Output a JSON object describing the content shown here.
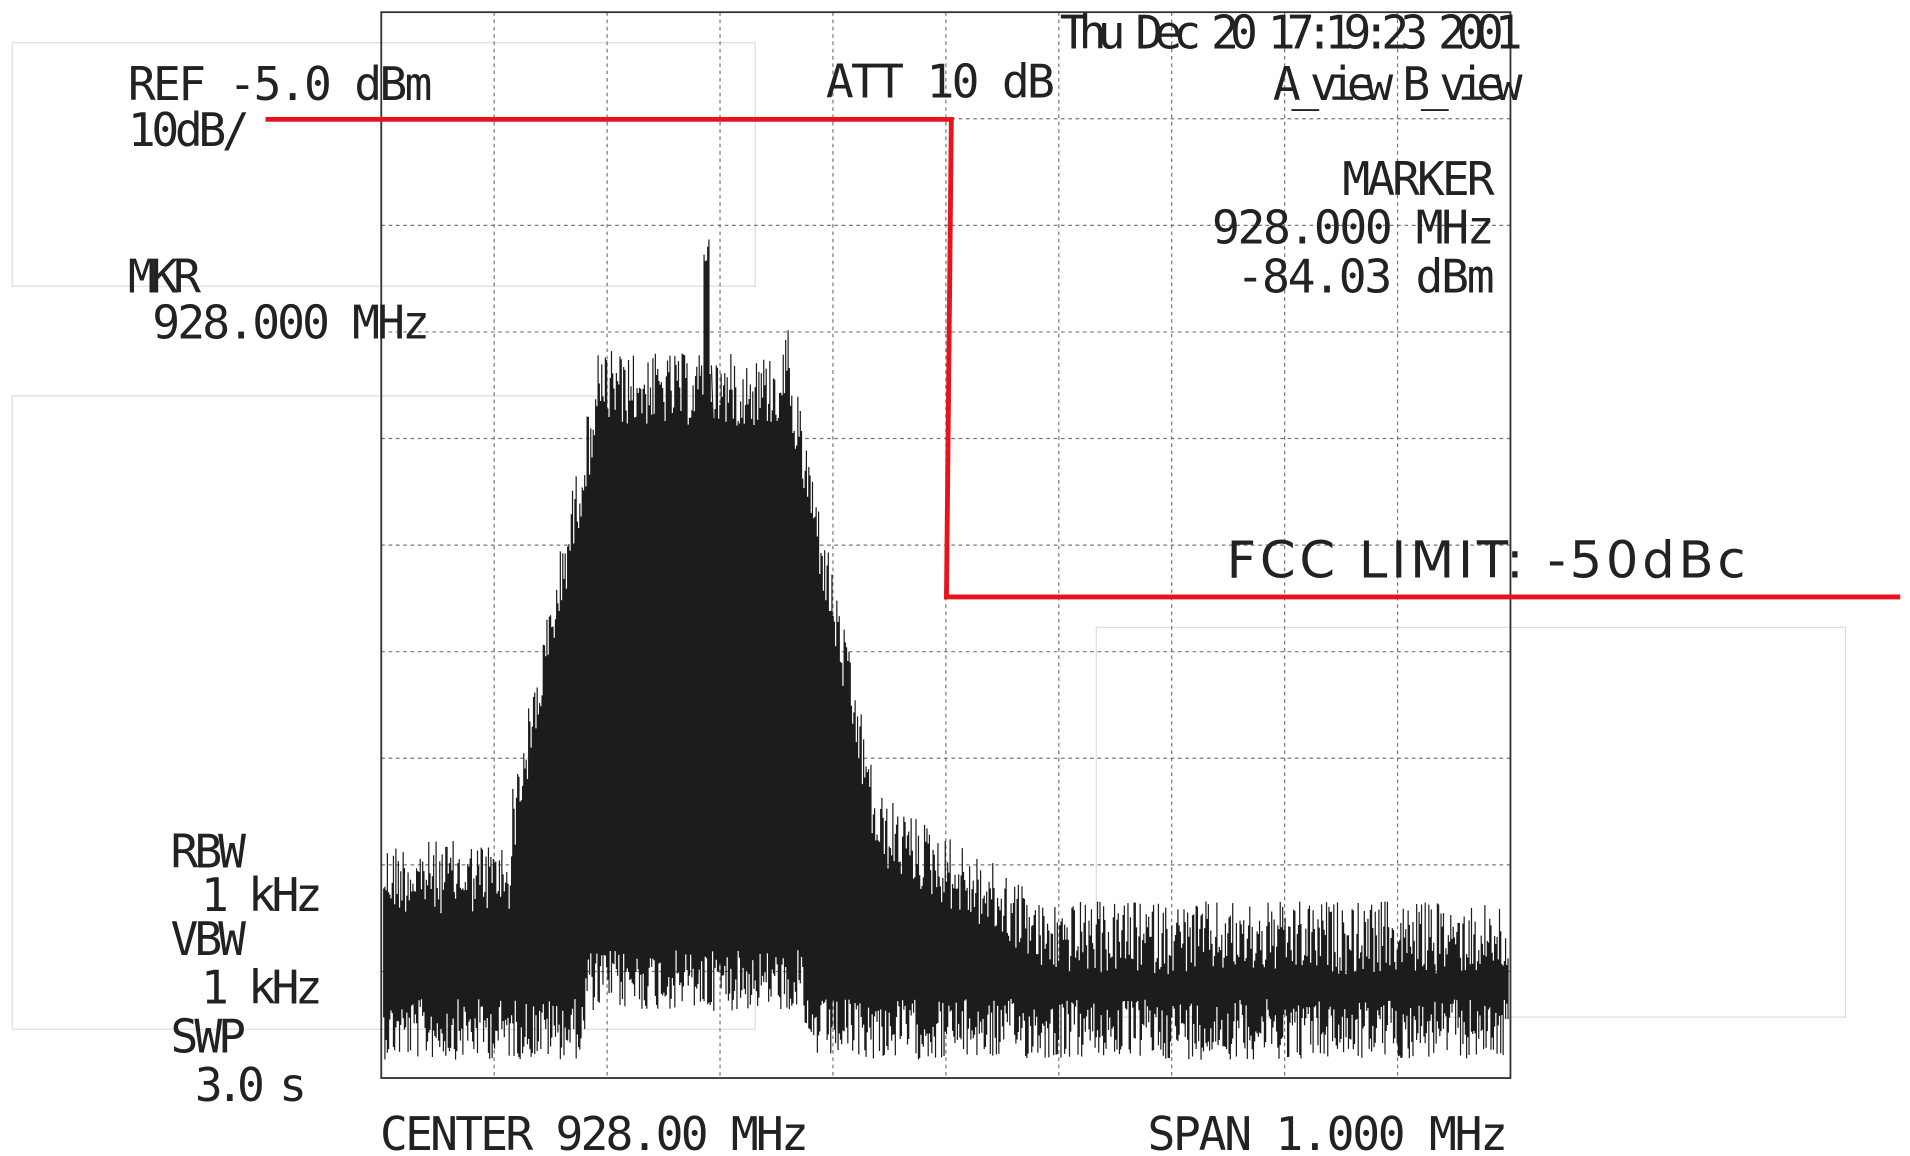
{
  "header": {
    "ref": "REF -5.0 dBm",
    "scale": "10dB/",
    "attenuation": "ATT 10 dB",
    "timestamp": "Thu Dec 20 17:19:23 2001",
    "views": "A_view B_view"
  },
  "marker": {
    "title": "MARKER",
    "frequency": "928.000 MHz",
    "level": "-84.03 dBm"
  },
  "mkr": {
    "label": "MKR",
    "frequency": "928.000 MHz"
  },
  "annotation": "FCC LIMIT: -50dBc",
  "settings": {
    "rbw_label": "RBW",
    "rbw": "1 kHz",
    "vbw_label": "VBW",
    "vbw": "1 kHz",
    "swp_label": "SWP",
    "swp": "3.0 s"
  },
  "footer": {
    "center": "CENTER 928.00 MHz",
    "span": "SPAN 1.000 MHz"
  }
}
